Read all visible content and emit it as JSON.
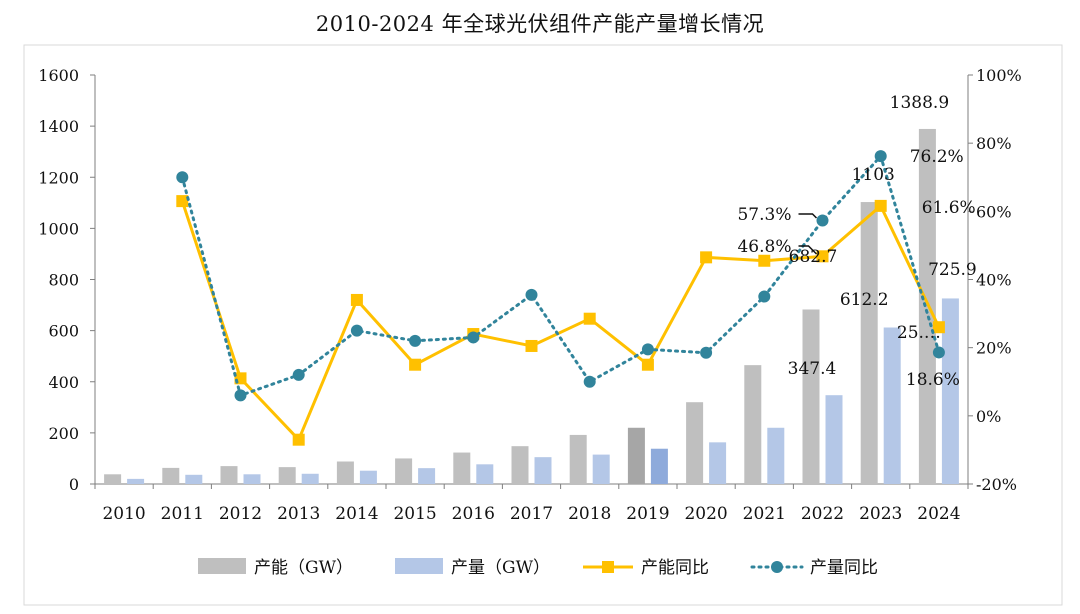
{
  "chart_data": {
    "type": "bar",
    "title": "2010-2024 年全球光伏组件产能产量增长情况",
    "categories": [
      "2010",
      "2011",
      "2012",
      "2013",
      "2014",
      "2015",
      "2016",
      "2017",
      "2018",
      "2019",
      "2020",
      "2021",
      "2022",
      "2023",
      "2024"
    ],
    "ylim": [
      0,
      1600
    ],
    "y2lim": [
      -0.2,
      1.0
    ],
    "yticks": [
      "0",
      "200",
      "400",
      "600",
      "800",
      "1000",
      "1200",
      "1400",
      "1600"
    ],
    "y2ticks": [
      "-20%",
      "0%",
      "20%",
      "40%",
      "60%",
      "80%",
      "100%"
    ],
    "grid": false,
    "legend_position": "bottom",
    "series": [
      {
        "name": "产能（GW）",
        "kind": "bar",
        "axis": "left",
        "color": "#bfbfbf",
        "values": [
          38,
          63,
          70,
          66,
          88,
          100,
          123,
          148,
          192,
          220,
          320,
          465,
          682.7,
          1103,
          1388.9
        ]
      },
      {
        "name": "产量（GW）",
        "kind": "bar",
        "axis": "left",
        "color": "#b4c7e7",
        "values": [
          20,
          36,
          38,
          40,
          52,
          62,
          77,
          105,
          115,
          138,
          163,
          220,
          347.4,
          612.2,
          725.9
        ]
      },
      {
        "name": "产能同比",
        "kind": "line",
        "axis": "right",
        "color": "#ffc000",
        "values": [
          null,
          0.63,
          0.11,
          -0.07,
          0.34,
          0.15,
          0.24,
          0.205,
          0.285,
          0.15,
          0.465,
          0.455,
          0.468,
          0.616,
          0.26
        ]
      },
      {
        "name": "产量同比",
        "kind": "line",
        "axis": "right",
        "color": "#31849b",
        "values": [
          null,
          0.7,
          0.06,
          0.12,
          0.25,
          0.22,
          0.23,
          0.355,
          0.1,
          0.195,
          0.185,
          0.35,
          0.573,
          0.762,
          0.186
        ]
      }
    ],
    "highlight_bars": {
      "category": "2019",
      "capacity_color": "#a6a6a6",
      "output_color": "#8eaadb"
    },
    "data_labels": {
      "bar_capacity": {
        "2022": "682.7",
        "2023": "1103",
        "2024": "1388.9"
      },
      "bar_output": {
        "2022": "347.4",
        "2023": "612.2",
        "2024": "725.9"
      },
      "capacity_yoy": {
        "2022": "46.8%",
        "2023": "61.6%",
        "2024": "25.…"
      },
      "output_yoy": {
        "2022": "57.3%",
        "2023": "76.2%",
        "2024": "18.6%"
      }
    }
  }
}
